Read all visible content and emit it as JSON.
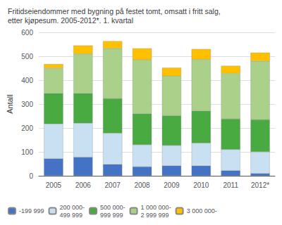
{
  "chart_data": {
    "type": "bar",
    "stacked": true,
    "title": "Fritidseiendommer med bygning på festet tomt, omsatt i fritt salg,\netter kjøpesum. 2005-2012*. 1. kvartal",
    "y_label": "Antall",
    "categories": [
      "2005",
      "2006",
      "2007",
      "2008",
      "2009",
      "2010",
      "2011",
      "2012*"
    ],
    "series": [
      {
        "name": "-199 999",
        "color": "#4472c4",
        "values": [
          72,
          78,
          48,
          38,
          42,
          42,
          22,
          10
        ]
      },
      {
        "name": "200 000-\n499 999",
        "color": "#c9dff2",
        "values": [
          145,
          142,
          130,
          92,
          85,
          95,
          88,
          90
        ]
      },
      {
        "name": "500 000-\n999 999",
        "color": "#4aaa42",
        "values": [
          128,
          125,
          145,
          130,
          125,
          135,
          128,
          135
        ]
      },
      {
        "name": "1 000 000-\n2 999 999",
        "color": "#aad08a",
        "values": [
          105,
          165,
          210,
          225,
          165,
          215,
          190,
          245
        ]
      },
      {
        "name": "3 000 000-",
        "color": "#ffc000",
        "values": [
          17,
          35,
          30,
          48,
          35,
          43,
          32,
          35
        ]
      }
    ],
    "ylim": [
      0,
      600
    ],
    "yticks": [
      0,
      100,
      200,
      300,
      400,
      500,
      600
    ],
    "grid": true,
    "legend": "bottom"
  }
}
